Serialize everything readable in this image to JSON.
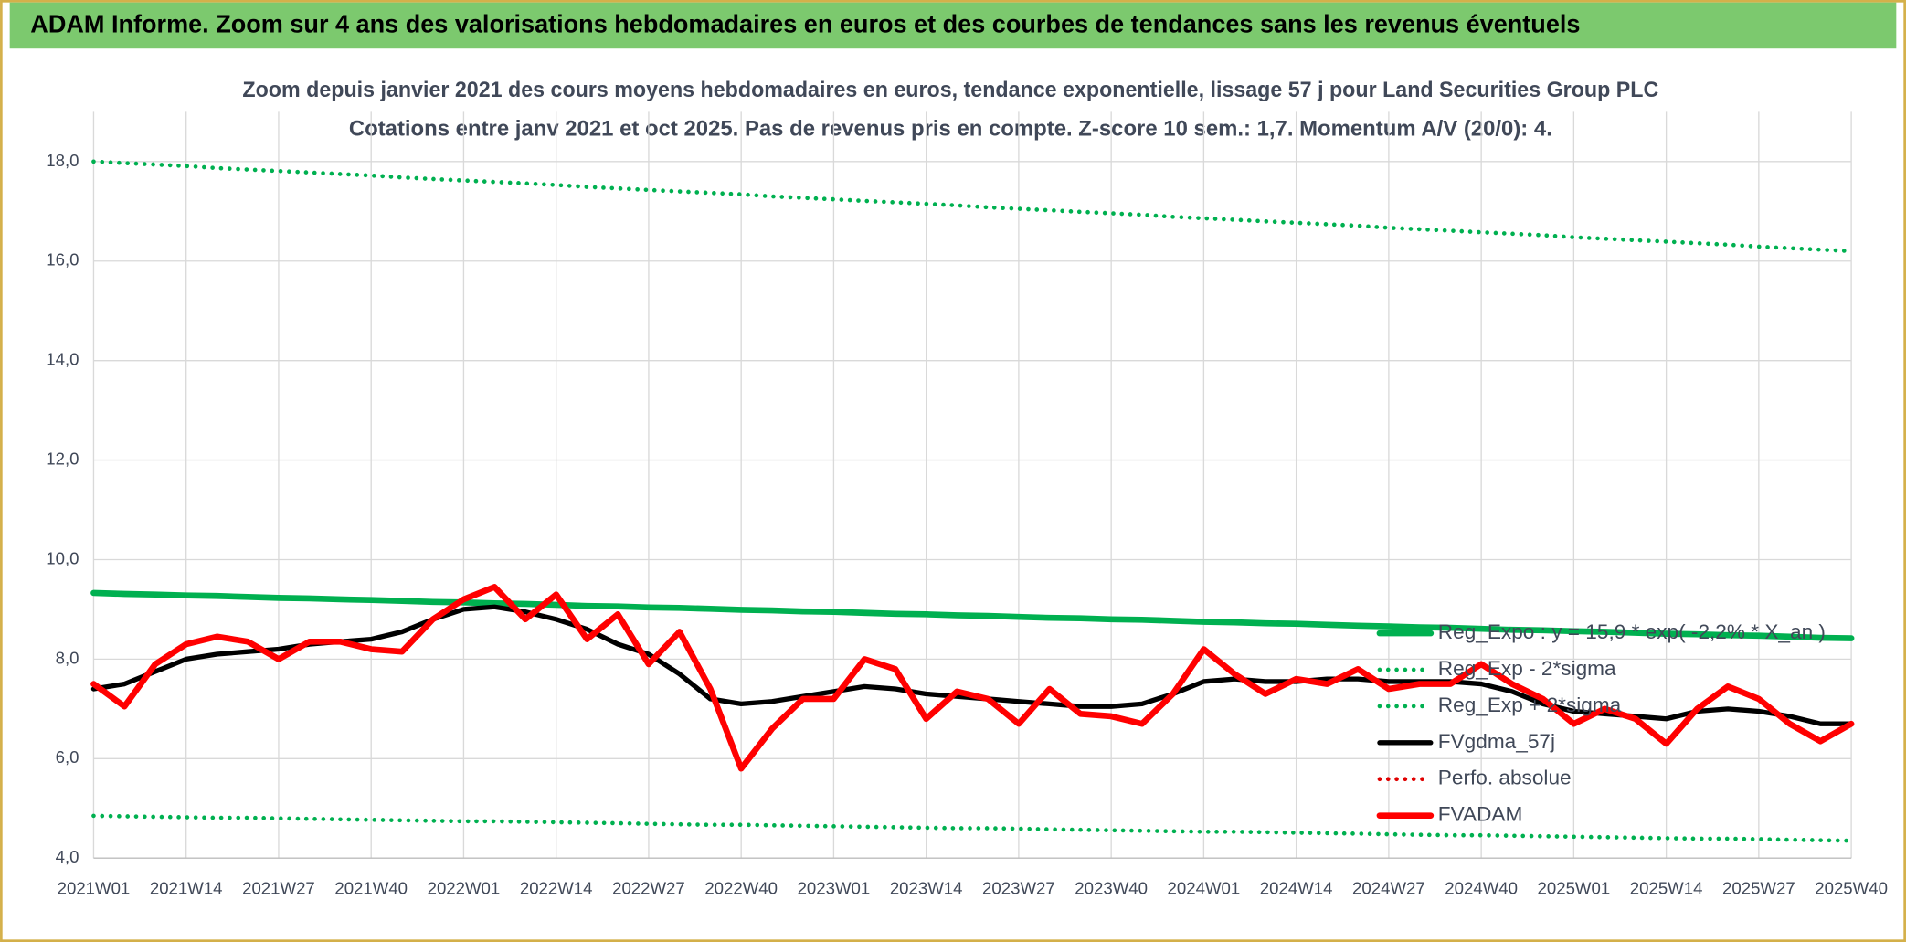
{
  "chart_data": {
    "type": "line",
    "title": "ADAM Informe. Zoom sur 4 ans des valorisations hebdomadaires en euros et des courbes de tendances sans les revenus éventuels",
    "subtitle": [
      "Zoom depuis janvier 2021 des cours moyens hebdomadaires en euros, tendance exponentielle, lissage 57 j pour Land Securities Group PLC",
      "Cotations entre janv 2021 et oct 2025. Pas de revenus pris en compte. Z-score 10 sem.: 1,7. Momentum A/V (20/0): 4."
    ],
    "categories": [
      "2021W01",
      null,
      null,
      "2021W14",
      null,
      null,
      "2021W27",
      null,
      null,
      "2021W40",
      null,
      null,
      "2022W01",
      null,
      null,
      "2022W14",
      null,
      null,
      "2022W27",
      null,
      null,
      "2022W40",
      null,
      null,
      "2023W01",
      null,
      null,
      "2023W14",
      null,
      null,
      "2023W27",
      null,
      null,
      "2023W40",
      null,
      null,
      "2024W01",
      null,
      null,
      "2024W14",
      null,
      null,
      "2024W27",
      null,
      null,
      "2024W40",
      null,
      null,
      "2025W01",
      null,
      null,
      "2025W14",
      null,
      null,
      "2025W27",
      null,
      null,
      "2025W40"
    ],
    "ylim": [
      4,
      19
    ],
    "yticks": [
      {
        "value": 4,
        "label": "4,0"
      },
      {
        "value": 6,
        "label": "6,0"
      },
      {
        "value": 8,
        "label": "8,0"
      },
      {
        "value": 10,
        "label": "10,0"
      },
      {
        "value": 12,
        "label": "12,0"
      },
      {
        "value": 14,
        "label": "14,0"
      },
      {
        "value": 16,
        "label": "16,0"
      },
      {
        "value": 18,
        "label": "18,0"
      }
    ],
    "grid": true,
    "legend": "right",
    "series": [
      {
        "name": "Reg_Expo : y = 15,9 * exp( -2,2% * X_an )",
        "color": "#00b050",
        "style": "solid",
        "values": [
          9.33,
          9.31,
          9.3,
          9.28,
          9.27,
          9.25,
          9.23,
          9.22,
          9.2,
          9.19,
          9.17,
          9.15,
          9.14,
          9.12,
          9.11,
          9.09,
          9.07,
          9.06,
          9.04,
          9.03,
          9.01,
          8.99,
          8.98,
          8.96,
          8.95,
          8.93,
          8.91,
          8.9,
          8.88,
          8.87,
          8.85,
          8.83,
          8.82,
          8.8,
          8.79,
          8.77,
          8.75,
          8.74,
          8.72,
          8.71,
          8.69,
          8.67,
          8.66,
          8.64,
          8.63,
          8.61,
          8.59,
          8.58,
          8.56,
          8.55,
          8.53,
          8.51,
          8.5,
          8.48,
          8.47,
          8.45,
          8.43,
          8.42
        ]
      },
      {
        "name": "Reg_Exp - 2*sigma",
        "color": "#00b050",
        "style": "dotted",
        "values": [
          4.85,
          4.84,
          4.83,
          4.82,
          4.81,
          4.81,
          4.8,
          4.79,
          4.78,
          4.77,
          4.76,
          4.75,
          4.74,
          4.74,
          4.73,
          4.72,
          4.71,
          4.7,
          4.69,
          4.68,
          4.67,
          4.67,
          4.66,
          4.65,
          4.64,
          4.63,
          4.62,
          4.61,
          4.6,
          4.6,
          4.59,
          4.58,
          4.57,
          4.56,
          4.55,
          4.54,
          4.53,
          4.53,
          4.52,
          4.51,
          4.5,
          4.49,
          4.48,
          4.47,
          4.46,
          4.46,
          4.45,
          4.44,
          4.43,
          4.42,
          4.41,
          4.4,
          4.39,
          4.39,
          4.38,
          4.37,
          4.36,
          4.35
        ]
      },
      {
        "name": "Reg_Exp + 2*sigma",
        "color": "#00b050",
        "style": "dotted",
        "values": [
          18.0,
          17.97,
          17.94,
          17.91,
          17.87,
          17.84,
          17.81,
          17.78,
          17.75,
          17.72,
          17.68,
          17.65,
          17.62,
          17.59,
          17.56,
          17.53,
          17.49,
          17.46,
          17.43,
          17.4,
          17.37,
          17.34,
          17.3,
          17.27,
          17.24,
          17.21,
          17.18,
          17.15,
          17.12,
          17.08,
          17.05,
          17.02,
          16.99,
          16.96,
          16.93,
          16.89,
          16.86,
          16.83,
          16.8,
          16.77,
          16.74,
          16.71,
          16.67,
          16.64,
          16.61,
          16.58,
          16.55,
          16.52,
          16.48,
          16.45,
          16.42,
          16.39,
          16.36,
          16.33,
          16.29,
          16.26,
          16.23,
          16.2
        ]
      },
      {
        "name": "FVgdma_57j",
        "color": "#000000",
        "style": "solid",
        "values": [
          7.4,
          7.5,
          7.75,
          8.0,
          8.1,
          8.15,
          8.2,
          8.3,
          8.35,
          8.4,
          8.55,
          8.8,
          9.0,
          9.05,
          8.95,
          8.8,
          8.6,
          8.3,
          8.1,
          7.7,
          7.2,
          7.1,
          7.15,
          7.25,
          7.35,
          7.45,
          7.4,
          7.3,
          7.25,
          7.2,
          7.15,
          7.1,
          7.05,
          7.05,
          7.1,
          7.3,
          7.55,
          7.6,
          7.55,
          7.55,
          7.6,
          7.6,
          7.55,
          7.55,
          7.55,
          7.5,
          7.35,
          7.1,
          6.95,
          6.9,
          6.85,
          6.8,
          6.95,
          7.0,
          6.95,
          6.85,
          6.7,
          6.7
        ]
      },
      {
        "name": "Perfo. absolue",
        "color": "#e00000",
        "style": "dotted",
        "values": [
          null,
          null,
          null,
          null,
          null,
          null,
          null,
          null,
          null,
          null,
          null,
          null,
          null,
          null,
          null,
          null,
          null,
          null,
          null,
          null,
          null,
          null,
          null,
          null,
          null,
          null,
          null,
          null,
          null,
          null,
          null,
          null,
          null,
          null,
          null,
          null,
          null,
          null,
          null,
          null,
          null,
          null,
          null,
          null,
          null,
          null,
          null,
          null,
          null,
          null,
          null,
          null,
          null,
          null,
          null,
          null,
          null,
          null
        ]
      },
      {
        "name": "FVADAM",
        "color": "#ff0000",
        "style": "solid",
        "values": [
          7.5,
          7.05,
          7.9,
          8.3,
          8.45,
          8.35,
          8.0,
          8.35,
          8.35,
          8.2,
          8.15,
          8.8,
          9.2,
          9.45,
          8.8,
          9.3,
          8.4,
          8.9,
          7.9,
          8.55,
          7.4,
          5.8,
          6.6,
          7.2,
          7.2,
          8.0,
          7.8,
          6.8,
          7.35,
          7.2,
          6.7,
          7.4,
          6.9,
          6.85,
          6.7,
          7.3,
          8.2,
          7.7,
          7.3,
          7.6,
          7.5,
          7.8,
          7.4,
          7.5,
          7.5,
          7.9,
          7.5,
          7.2,
          6.7,
          7.0,
          6.8,
          6.3,
          7.0,
          7.45,
          7.2,
          6.7,
          6.35,
          6.7
        ]
      }
    ]
  }
}
